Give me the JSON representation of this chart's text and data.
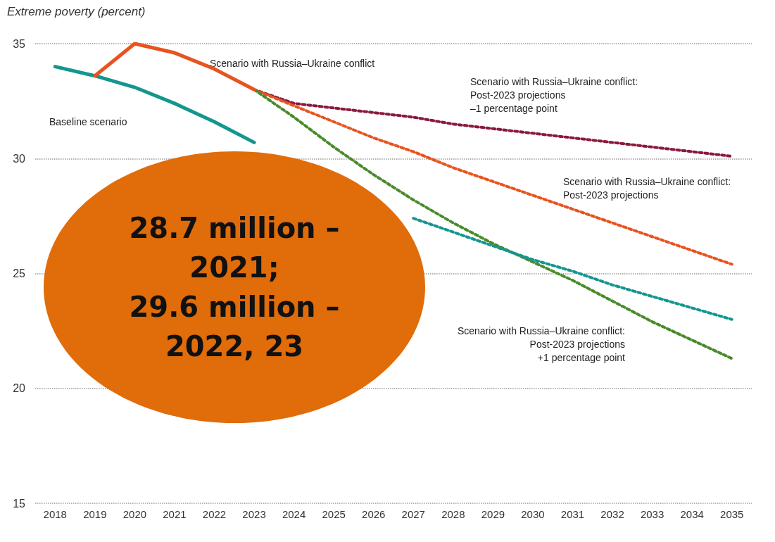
{
  "chart_data": {
    "type": "line",
    "ylabel": "Extreme poverty (percent)",
    "categories": [
      "2018",
      "2019",
      "2020",
      "2021",
      "2022",
      "2023",
      "2024",
      "2025",
      "2026",
      "2027",
      "2028",
      "2029",
      "2030",
      "2031",
      "2032",
      "2033",
      "2034",
      "2035"
    ],
    "series": [
      {
        "color": "#8b1a3a",
        "line_style": "dotted",
        "values": [
          null,
          null,
          null,
          null,
          null,
          33.0,
          32.4,
          32.2,
          32.0,
          31.8,
          31.5,
          31.3,
          31.1,
          30.9,
          30.7,
          30.5,
          30.3,
          30.1
        ]
      },
      {
        "color": "#e8531e",
        "line_style": "dotted",
        "values": [
          null,
          null,
          null,
          null,
          null,
          33.0,
          32.3,
          31.6,
          30.9,
          30.3,
          29.6,
          29.0,
          28.4,
          27.8,
          27.2,
          26.6,
          26.0,
          25.4
        ]
      },
      {
        "color": "#4a8a2a",
        "line_style": "dotted",
        "values": [
          null,
          null,
          null,
          null,
          null,
          33.0,
          31.8,
          30.5,
          29.3,
          28.2,
          27.2,
          26.3,
          25.5,
          24.7,
          23.8,
          22.9,
          22.1,
          21.3
        ]
      },
      {
        "color": "#14968f",
        "line_style": "dotted",
        "values": [
          null,
          null,
          null,
          null,
          null,
          null,
          null,
          null,
          null,
          27.4,
          26.8,
          26.2,
          25.6,
          25.1,
          24.5,
          24.0,
          23.5,
          23.0
        ]
      },
      {
        "color": "#14968f",
        "line_style": "solid",
        "values": [
          34.0,
          33.6,
          33.1,
          32.4,
          31.6,
          30.7,
          null,
          null,
          null,
          null,
          null,
          null,
          null,
          null,
          null,
          null,
          null,
          null
        ]
      },
      {
        "color": "#e8531e",
        "line_style": "solid",
        "values": [
          null,
          33.6,
          35.0,
          34.6,
          33.9,
          33.0,
          null,
          null,
          null,
          null,
          null,
          null,
          null,
          null,
          null,
          null,
          null,
          null
        ]
      }
    ],
    "ylim": [
      15,
      35
    ],
    "yticks": [
      15,
      20,
      25,
      30,
      35
    ],
    "grid": "y",
    "marker": "none",
    "annotations": [
      "Baseline scenario",
      "Scenario with Russia–Ukraine conflict",
      "Scenario with Russia–Ukraine conflict:\nPost-2023 projections\n–1 percentage point",
      "Scenario with Russia–Ukraine conflict:\nPost-2023 projections",
      "Scenario with Russia–Ukraine conflict:\nPost-2023 projections\n+1 percentage point",
      "28.7 million –\n2021;\n29.6 million –\n2022, 23"
    ]
  }
}
